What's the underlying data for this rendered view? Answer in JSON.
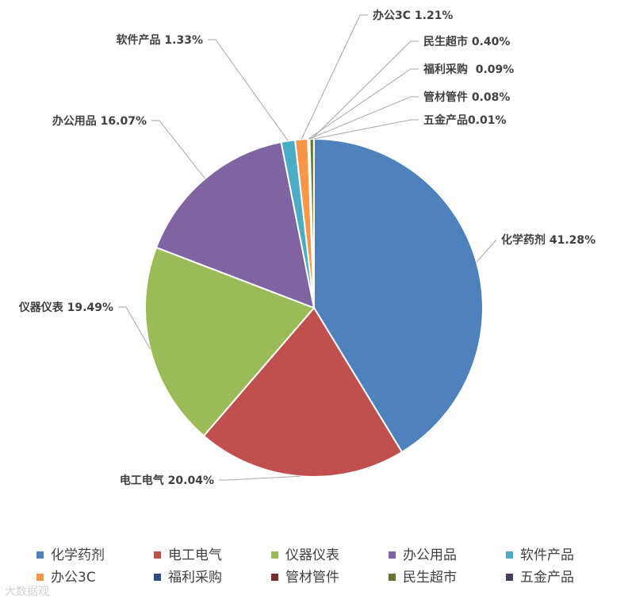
{
  "chart_data": {
    "type": "pie",
    "title": "",
    "slices": [
      {
        "label": "化学药剂",
        "value": 41.28,
        "display": "化学药剂 41.28%",
        "color": "#4F81BD"
      },
      {
        "label": "电工电气",
        "value": 20.04,
        "display": "电工电气 20.04%",
        "color": "#C0504D"
      },
      {
        "label": "仪器仪表",
        "value": 19.49,
        "display": "仪器仪表 19.49%",
        "color": "#9BBB59"
      },
      {
        "label": "办公用品",
        "value": 16.07,
        "display": "办公用品 16.07%",
        "color": "#8064A2"
      },
      {
        "label": "软件产品",
        "value": 1.33,
        "display": "软件产品 1.33%",
        "color": "#4BACC6"
      },
      {
        "label": "办公3C",
        "value": 1.21,
        "display": "办公3C 1.21%",
        "color": "#F79646"
      },
      {
        "label": "福利采购",
        "value": 0.09,
        "display": "福利采购  0.09%",
        "color": "#2C4D75"
      },
      {
        "label": "管材管件",
        "value": 0.08,
        "display": "管材管件 0.08%",
        "color": "#772C2A"
      },
      {
        "label": "民生超市",
        "value": 0.4,
        "display": "民生超市 0.40%",
        "color": "#5F7530"
      },
      {
        "label": "五金产品",
        "value": 0.01,
        "display": "五金产品0.01%",
        "color": "#4D3B62"
      }
    ],
    "legend": {
      "position": "bottom",
      "items": [
        "化学药剂",
        "电工电气",
        "仪器仪表",
        "办公用品",
        "软件产品",
        "办公3C",
        "福利采购",
        "管材管件",
        "民生超市",
        "五金产品"
      ]
    }
  },
  "watermark": "大数据观"
}
